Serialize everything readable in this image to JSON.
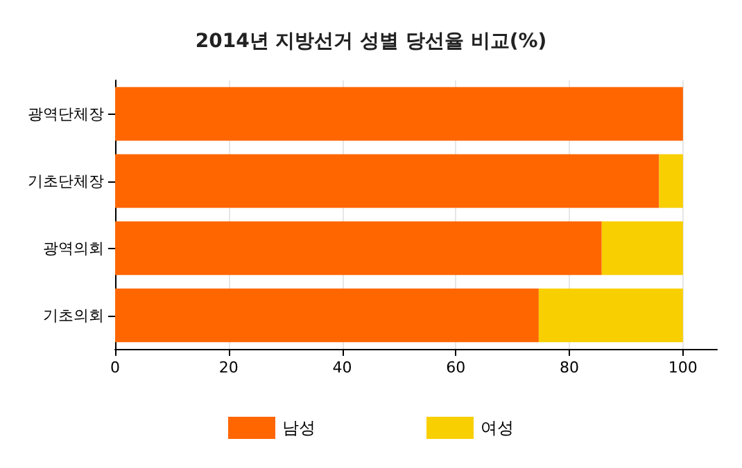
{
  "chart_data": {
    "type": "bar",
    "orientation": "horizontal",
    "stacked": true,
    "title": "2014년 지방선거 성별 당선율 비교(%)",
    "categories": [
      "광역단체장",
      "기초단체장",
      "광역의회",
      "기초의회"
    ],
    "series": [
      {
        "name": "남성",
        "color": "#ff6600",
        "values": [
          100,
          95.8,
          85.7,
          74.6
        ]
      },
      {
        "name": "여성",
        "color": "#f8cf00",
        "values": [
          0,
          4.2,
          14.3,
          25.4
        ]
      }
    ],
    "xlim": [
      0,
      106
    ],
    "xticks": [
      0,
      20,
      40,
      60,
      80,
      100
    ],
    "grid": "x",
    "legend": "bottom"
  }
}
